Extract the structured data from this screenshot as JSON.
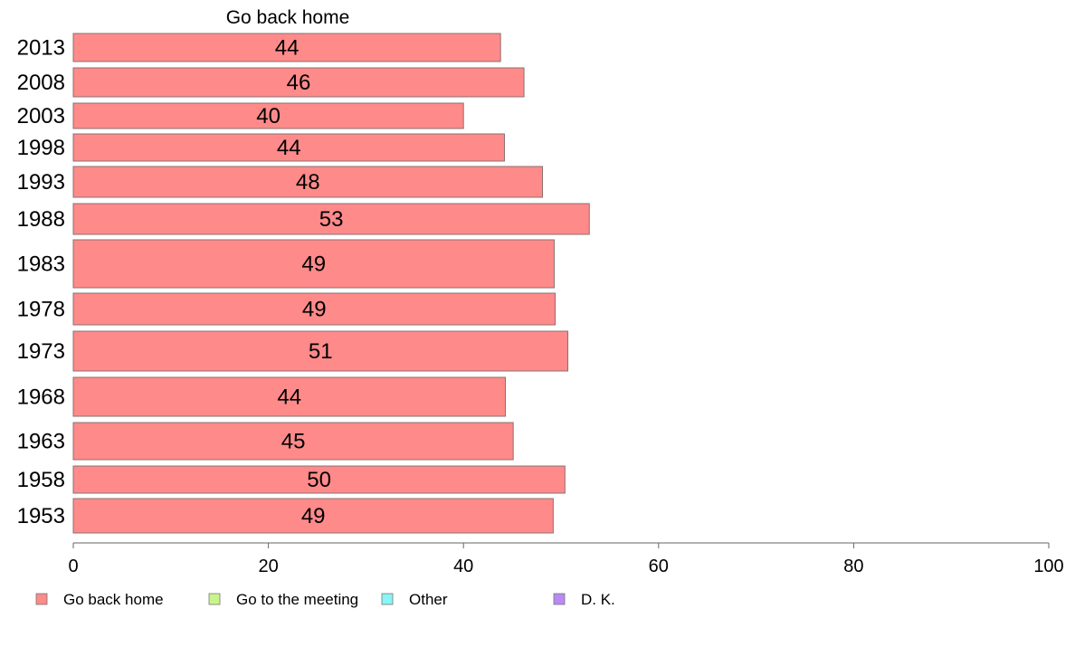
{
  "chart_data": {
    "type": "bar",
    "orientation": "horizontal",
    "title": "Go back home",
    "categories": [
      "2013",
      "2008",
      "2003",
      "1998",
      "1993",
      "1988",
      "1983",
      "1978",
      "1973",
      "1968",
      "1963",
      "1958",
      "1953"
    ],
    "series": [
      {
        "name": "Go back home",
        "color": "#ff8a8a",
        "values": [
          43.8,
          46.2,
          40.0,
          44.2,
          48.1,
          52.9,
          49.3,
          49.4,
          50.7,
          44.3,
          45.1,
          50.4,
          49.2
        ],
        "data_labels": [
          "44",
          "46",
          "40",
          "44",
          "48",
          "53",
          "49",
          "49",
          "51",
          "44",
          "45",
          "50",
          "49"
        ]
      }
    ],
    "xlim": [
      0,
      100
    ],
    "x_ticks": [
      "0",
      "20",
      "40",
      "60",
      "80",
      "100"
    ],
    "grid": false,
    "legend": {
      "placement": "bottom",
      "entries": [
        {
          "label": "Go back home",
          "color": "#ff8a8a"
        },
        {
          "label": "Go to the meeting",
          "color": "#c8f58a"
        },
        {
          "label": "Other",
          "color": "#8af5f5"
        },
        {
          "label": "D. K.",
          "color": "#b98af5"
        }
      ]
    }
  }
}
